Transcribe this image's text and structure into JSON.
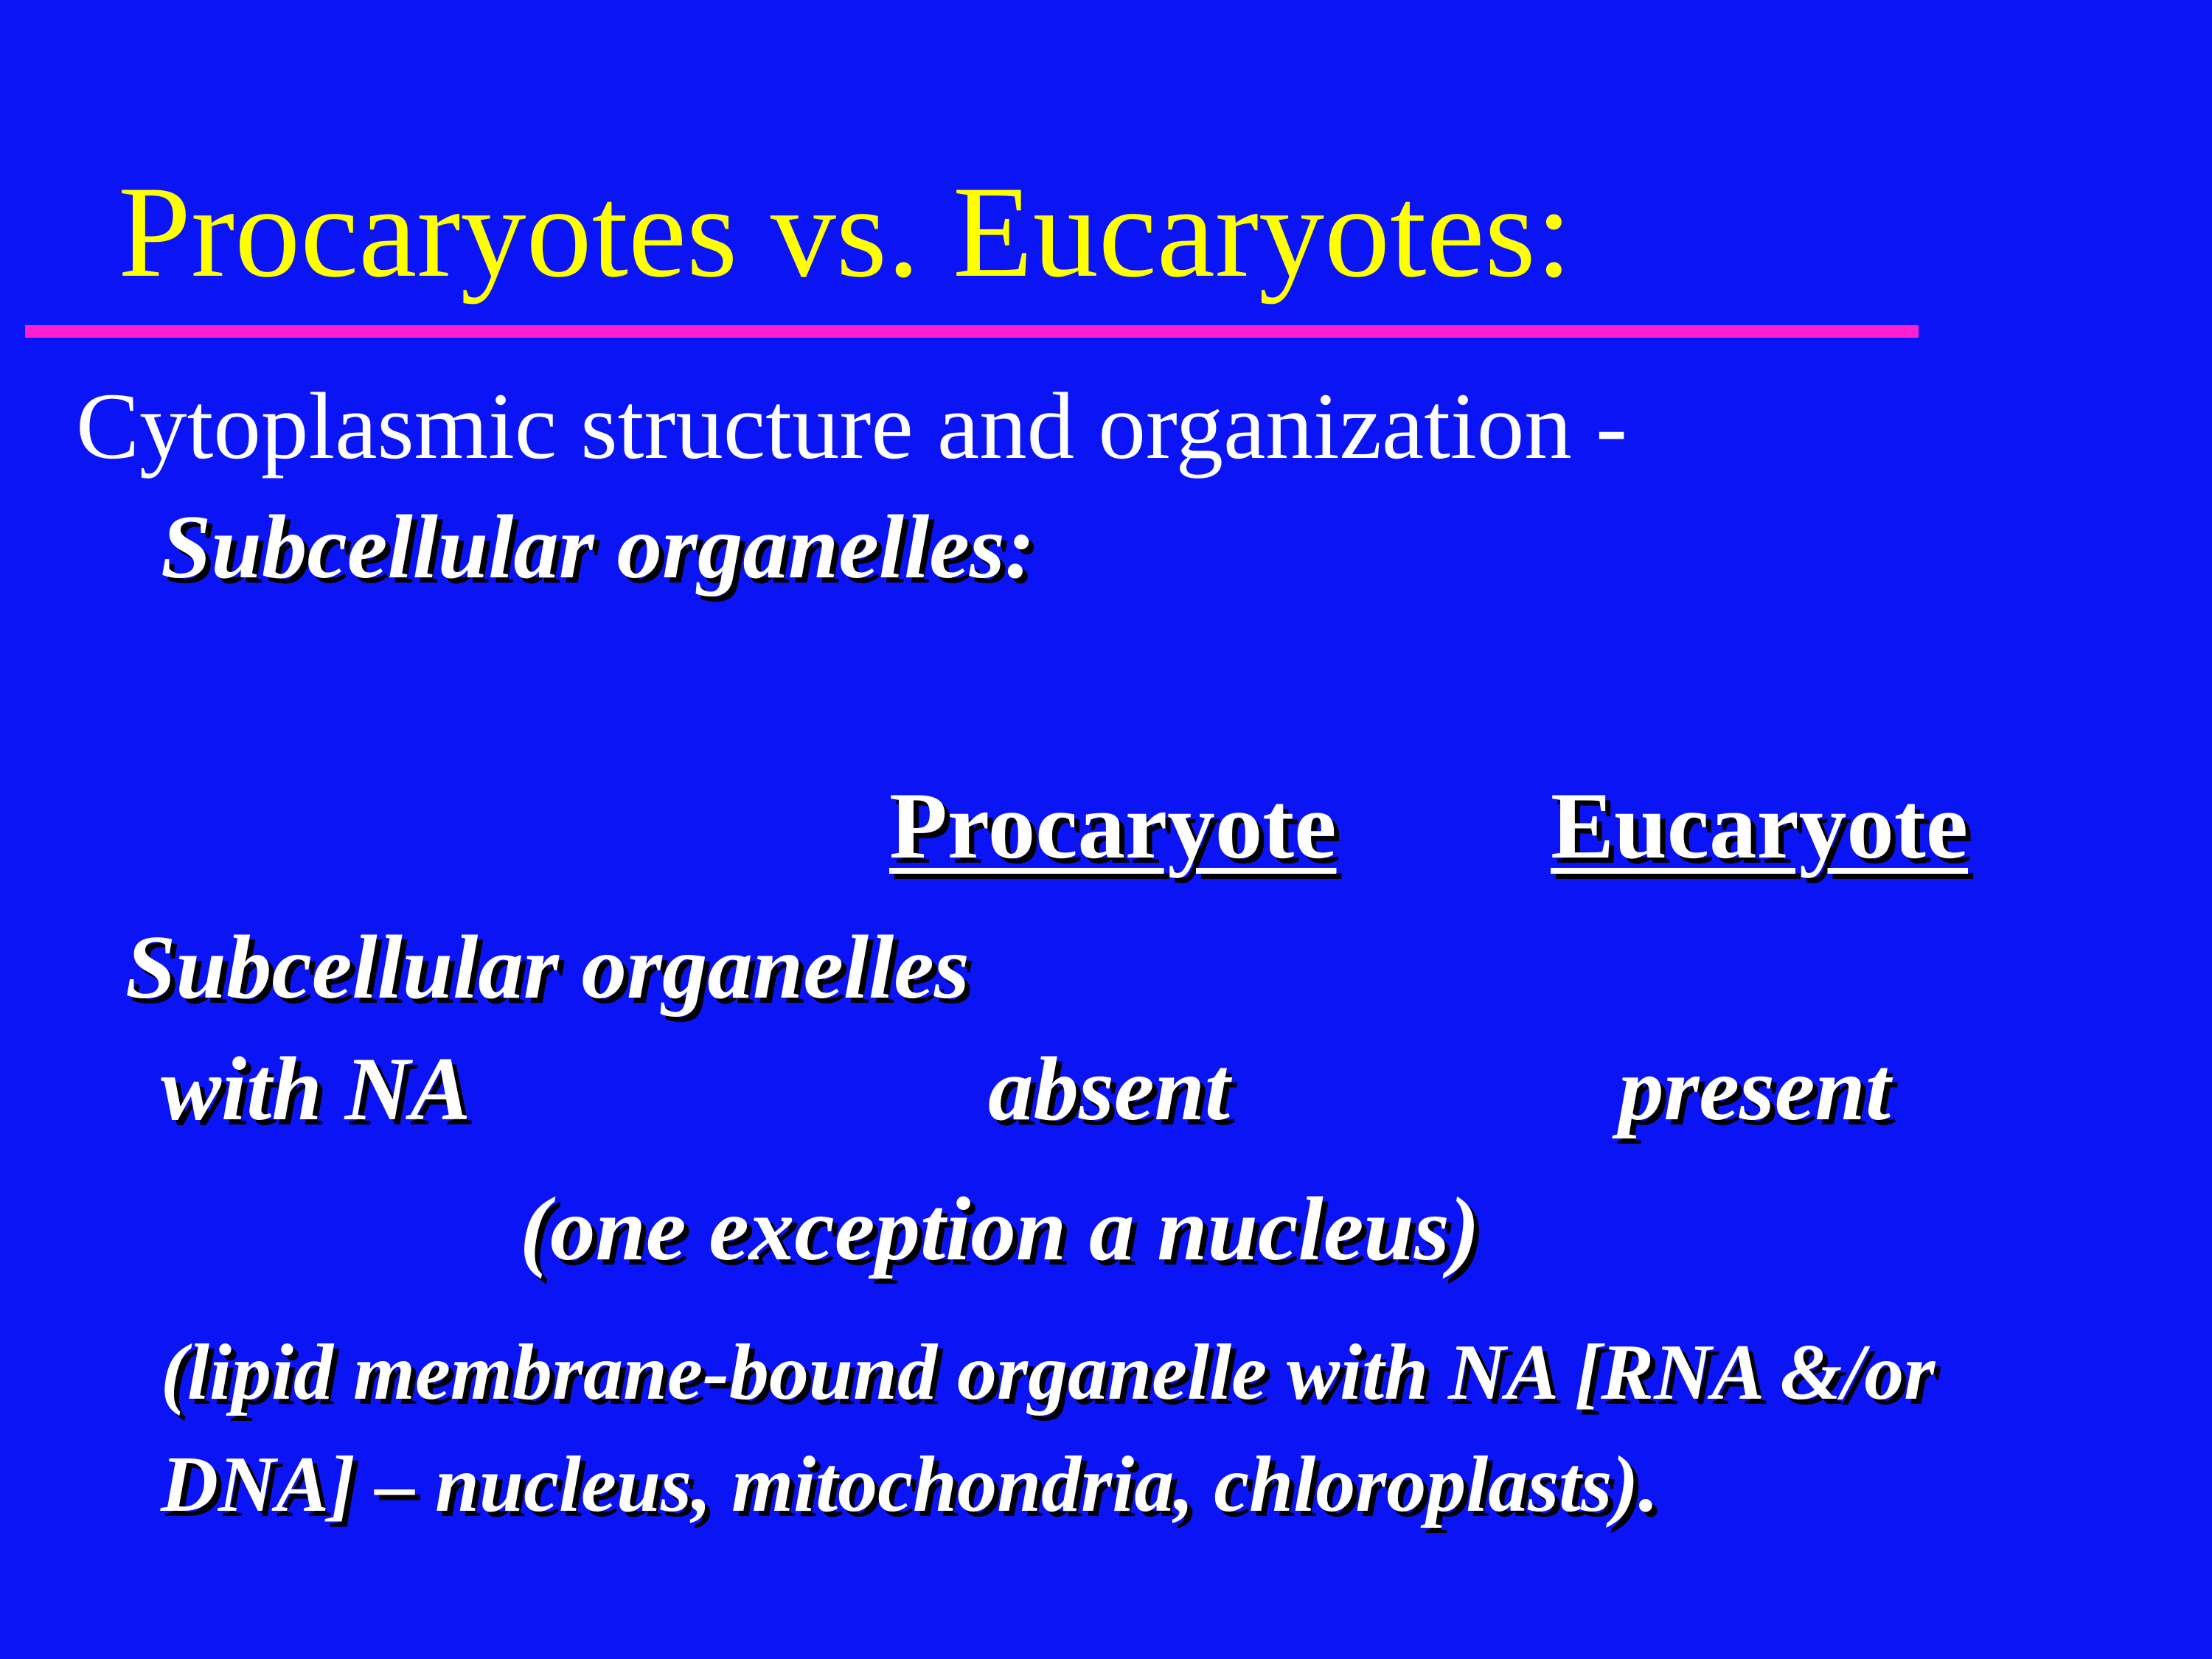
{
  "slide": {
    "title": "Procaryotes vs. Eucaryotes:",
    "subtitle": "Cytoplasmic structure and organization -",
    "section_label": "Subcellular organelles:",
    "colors": {
      "background": "#0a14f5",
      "title": "#ffff00",
      "rule": "#ff1ed2",
      "body": "#ffffff"
    }
  },
  "table": {
    "headers": [
      "Procaryote",
      "Eucaryote"
    ],
    "row": {
      "label_line1": "Subcellular organelles",
      "label_line2": "with NA",
      "procaryote": "absent",
      "eucaryote": "present"
    },
    "exception": "(one exception a nucleus)"
  },
  "note": {
    "line1": "(lipid membrane-bound organelle with NA [RNA &/or",
    "line2": "DNA] – nucleus, mitochondria, chloroplasts)."
  }
}
